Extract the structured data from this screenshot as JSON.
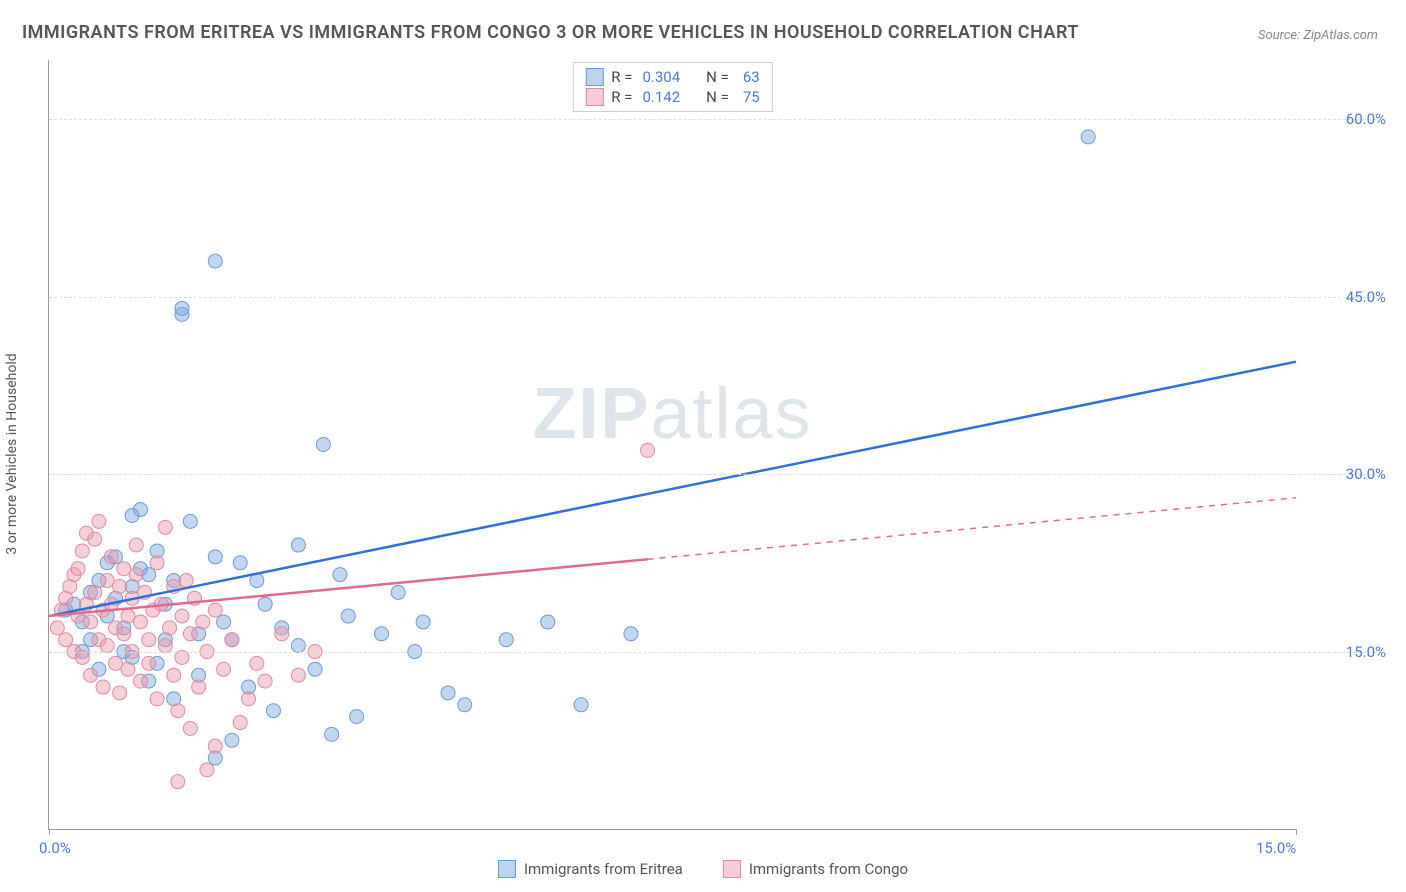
{
  "title": "IMMIGRANTS FROM ERITREA VS IMMIGRANTS FROM CONGO 3 OR MORE VEHICLES IN HOUSEHOLD CORRELATION CHART",
  "source": "Source: ZipAtlas.com",
  "y_axis_label": "3 or more Vehicles in Household",
  "watermark": "ZIPatlas",
  "chart": {
    "type": "scatter",
    "xlim": [
      0,
      15
    ],
    "ylim": [
      0,
      65
    ],
    "x_ticks": [
      0.0,
      15.0
    ],
    "x_tick_labels": [
      "0.0%",
      "15.0%"
    ],
    "y_ticks": [
      15.0,
      30.0,
      45.0,
      60.0
    ],
    "y_tick_labels": [
      "15.0%",
      "30.0%",
      "45.0%",
      "60.0%"
    ],
    "grid_color": "#dddddd",
    "axis_color": "#999999",
    "background_color": "#ffffff",
    "series": [
      {
        "name": "Immigrants from Eritrea",
        "color_fill": "rgba(120,165,220,0.45)",
        "color_stroke": "#6a9bd8",
        "swatch_fill": "#bdd4ef",
        "swatch_border": "#6a9bd8",
        "line_color": "#2f6fd6",
        "r_value": "0.304",
        "n_value": "63",
        "trend": {
          "x1": 0,
          "y1": 18.0,
          "x2": 15,
          "y2": 39.5,
          "solid_until_x": 15
        },
        "marker_radius": 7,
        "points": [
          [
            0.2,
            18.5
          ],
          [
            0.3,
            19.0
          ],
          [
            0.4,
            17.5
          ],
          [
            0.5,
            20.0
          ],
          [
            0.5,
            16.0
          ],
          [
            0.6,
            21.0
          ],
          [
            0.7,
            22.5
          ],
          [
            0.7,
            18.0
          ],
          [
            0.8,
            19.5
          ],
          [
            0.8,
            23.0
          ],
          [
            0.9,
            15.0
          ],
          [
            0.9,
            17.0
          ],
          [
            1.0,
            20.5
          ],
          [
            1.0,
            26.5
          ],
          [
            1.1,
            22.0
          ],
          [
            1.1,
            27.0
          ],
          [
            1.2,
            12.5
          ],
          [
            1.2,
            21.5
          ],
          [
            1.3,
            14.0
          ],
          [
            1.3,
            23.5
          ],
          [
            1.4,
            19.0
          ],
          [
            1.5,
            11.0
          ],
          [
            1.5,
            21.0
          ],
          [
            1.6,
            43.5
          ],
          [
            1.6,
            44.0
          ],
          [
            1.7,
            26.0
          ],
          [
            1.8,
            16.5
          ],
          [
            1.8,
            13.0
          ],
          [
            2.0,
            6.0
          ],
          [
            2.0,
            23.0
          ],
          [
            2.0,
            48.0
          ],
          [
            2.1,
            17.5
          ],
          [
            2.2,
            7.5
          ],
          [
            2.3,
            22.5
          ],
          [
            2.4,
            12.0
          ],
          [
            2.5,
            21.0
          ],
          [
            2.6,
            19.0
          ],
          [
            2.7,
            10.0
          ],
          [
            2.8,
            17.0
          ],
          [
            3.0,
            24.0
          ],
          [
            3.0,
            15.5
          ],
          [
            3.2,
            13.5
          ],
          [
            3.3,
            32.5
          ],
          [
            3.4,
            8.0
          ],
          [
            3.5,
            21.5
          ],
          [
            3.6,
            18.0
          ],
          [
            3.7,
            9.5
          ],
          [
            4.0,
            16.5
          ],
          [
            4.2,
            20.0
          ],
          [
            4.4,
            15.0
          ],
          [
            4.5,
            17.5
          ],
          [
            4.8,
            11.5
          ],
          [
            5.0,
            10.5
          ],
          [
            5.5,
            16.0
          ],
          [
            6.0,
            17.5
          ],
          [
            6.4,
            10.5
          ],
          [
            7.0,
            16.5
          ],
          [
            12.5,
            58.5
          ],
          [
            1.0,
            14.5
          ],
          [
            0.6,
            13.5
          ],
          [
            0.4,
            15.0
          ],
          [
            1.4,
            16.0
          ],
          [
            2.2,
            16.0
          ]
        ]
      },
      {
        "name": "Immigrants from Congo",
        "color_fill": "rgba(235,150,170,0.45)",
        "color_stroke": "#e08aa0",
        "swatch_fill": "#f6cdd7",
        "swatch_border": "#e08aa0",
        "line_color": "#e06a8a",
        "r_value": "0.142",
        "n_value": "75",
        "trend": {
          "x1": 0,
          "y1": 18.0,
          "x2": 15,
          "y2": 28.0,
          "solid_until_x": 7.2
        },
        "marker_radius": 7,
        "points": [
          [
            0.1,
            17.0
          ],
          [
            0.15,
            18.5
          ],
          [
            0.2,
            19.5
          ],
          [
            0.2,
            16.0
          ],
          [
            0.25,
            20.5
          ],
          [
            0.3,
            21.5
          ],
          [
            0.3,
            15.0
          ],
          [
            0.35,
            22.0
          ],
          [
            0.35,
            18.0
          ],
          [
            0.4,
            23.5
          ],
          [
            0.4,
            14.5
          ],
          [
            0.45,
            19.0
          ],
          [
            0.45,
            25.0
          ],
          [
            0.5,
            17.5
          ],
          [
            0.5,
            13.0
          ],
          [
            0.55,
            20.0
          ],
          [
            0.55,
            24.5
          ],
          [
            0.6,
            16.0
          ],
          [
            0.6,
            26.0
          ],
          [
            0.65,
            18.5
          ],
          [
            0.65,
            12.0
          ],
          [
            0.7,
            21.0
          ],
          [
            0.7,
            15.5
          ],
          [
            0.75,
            23.0
          ],
          [
            0.75,
            19.0
          ],
          [
            0.8,
            17.0
          ],
          [
            0.8,
            14.0
          ],
          [
            0.85,
            20.5
          ],
          [
            0.85,
            11.5
          ],
          [
            0.9,
            22.0
          ],
          [
            0.9,
            16.5
          ],
          [
            0.95,
            18.0
          ],
          [
            0.95,
            13.5
          ],
          [
            1.0,
            19.5
          ],
          [
            1.0,
            15.0
          ],
          [
            1.05,
            21.5
          ],
          [
            1.05,
            24.0
          ],
          [
            1.1,
            17.5
          ],
          [
            1.1,
            12.5
          ],
          [
            1.15,
            20.0
          ],
          [
            1.2,
            16.0
          ],
          [
            1.2,
            14.0
          ],
          [
            1.25,
            18.5
          ],
          [
            1.3,
            11.0
          ],
          [
            1.3,
            22.5
          ],
          [
            1.35,
            19.0
          ],
          [
            1.4,
            25.5
          ],
          [
            1.4,
            15.5
          ],
          [
            1.45,
            17.0
          ],
          [
            1.5,
            13.0
          ],
          [
            1.5,
            20.5
          ],
          [
            1.55,
            10.0
          ],
          [
            1.6,
            18.0
          ],
          [
            1.6,
            14.5
          ],
          [
            1.65,
            21.0
          ],
          [
            1.7,
            16.5
          ],
          [
            1.7,
            8.5
          ],
          [
            1.75,
            19.5
          ],
          [
            1.8,
            12.0
          ],
          [
            1.85,
            17.5
          ],
          [
            1.9,
            5.0
          ],
          [
            1.9,
            15.0
          ],
          [
            2.0,
            7.0
          ],
          [
            2.0,
            18.5
          ],
          [
            2.1,
            13.5
          ],
          [
            2.2,
            16.0
          ],
          [
            2.3,
            9.0
          ],
          [
            2.4,
            11.0
          ],
          [
            2.5,
            14.0
          ],
          [
            2.6,
            12.5
          ],
          [
            2.8,
            16.5
          ],
          [
            3.0,
            13.0
          ],
          [
            3.2,
            15.0
          ],
          [
            7.2,
            32.0
          ],
          [
            1.55,
            4.0
          ]
        ]
      }
    ]
  },
  "legend_top": {
    "r_label": "R =",
    "n_label": "N ="
  },
  "bottom_legend": {
    "items": [
      "Immigrants from Eritrea",
      "Immigrants from Congo"
    ]
  }
}
